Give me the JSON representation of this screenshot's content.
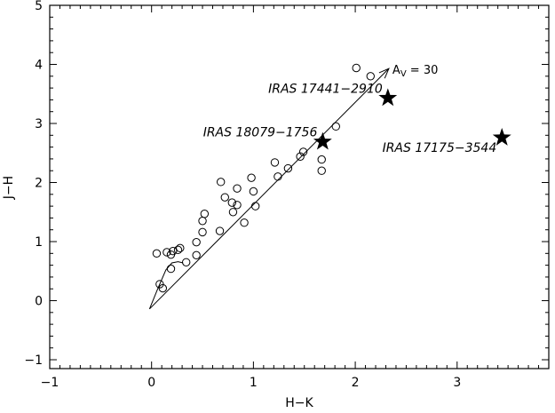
{
  "chart_data": {
    "type": "scatter",
    "xlabel": "H−K",
    "ylabel": "J−H",
    "xlim": [
      -1,
      3.9
    ],
    "ylim": [
      -1.15,
      5
    ],
    "xticks": [
      -1,
      0,
      1,
      2,
      3
    ],
    "yticks": [
      -1,
      0,
      1,
      2,
      3,
      4,
      5
    ],
    "xtick_labels": [
      "−1",
      "0",
      "1",
      "2",
      "3"
    ],
    "ytick_labels": [
      "−1",
      "0",
      "1",
      "2",
      "3",
      "4",
      "5"
    ],
    "grid": false,
    "circles": [
      {
        "x": 0.05,
        "y": 0.8
      },
      {
        "x": 0.15,
        "y": 0.82
      },
      {
        "x": 0.19,
        "y": 0.78
      },
      {
        "x": 0.21,
        "y": 0.84
      },
      {
        "x": 0.26,
        "y": 0.86
      },
      {
        "x": 0.28,
        "y": 0.89
      },
      {
        "x": 0.08,
        "y": 0.28
      },
      {
        "x": 0.11,
        "y": 0.21
      },
      {
        "x": 0.19,
        "y": 0.54
      },
      {
        "x": 0.34,
        "y": 0.65
      },
      {
        "x": 0.44,
        "y": 0.77
      },
      {
        "x": 0.44,
        "y": 0.99
      },
      {
        "x": 0.5,
        "y": 1.16
      },
      {
        "x": 0.5,
        "y": 1.35
      },
      {
        "x": 0.52,
        "y": 1.47
      },
      {
        "x": 0.67,
        "y": 1.18
      },
      {
        "x": 0.68,
        "y": 2.01
      },
      {
        "x": 0.72,
        "y": 1.75
      },
      {
        "x": 0.79,
        "y": 1.66
      },
      {
        "x": 0.8,
        "y": 1.5
      },
      {
        "x": 0.84,
        "y": 1.62
      },
      {
        "x": 0.84,
        "y": 1.9
      },
      {
        "x": 0.91,
        "y": 1.32
      },
      {
        "x": 0.98,
        "y": 2.08
      },
      {
        "x": 1.0,
        "y": 1.85
      },
      {
        "x": 1.02,
        "y": 1.6
      },
      {
        "x": 1.21,
        "y": 2.34
      },
      {
        "x": 1.24,
        "y": 2.1
      },
      {
        "x": 1.34,
        "y": 2.24
      },
      {
        "x": 1.46,
        "y": 2.44
      },
      {
        "x": 1.49,
        "y": 2.52
      },
      {
        "x": 1.67,
        "y": 2.2
      },
      {
        "x": 1.67,
        "y": 2.39
      },
      {
        "x": 1.81,
        "y": 2.95
      },
      {
        "x": 2.01,
        "y": 3.94
      },
      {
        "x": 2.15,
        "y": 3.8
      }
    ],
    "stars": [
      {
        "label": "IRAS 17441−2910",
        "x": 2.32,
        "y": 3.43
      },
      {
        "label": "IRAS 18079−1756",
        "x": 1.68,
        "y": 2.69
      },
      {
        "label": "IRAS 17175−3544",
        "x": 3.44,
        "y": 2.76
      }
    ],
    "locus": [
      {
        "x": -0.02,
        "y": -0.14
      },
      {
        "x": 0.06,
        "y": 0.2
      },
      {
        "x": 0.14,
        "y": 0.52
      },
      {
        "x": 0.2,
        "y": 0.64
      },
      {
        "x": 0.26,
        "y": 0.66
      },
      {
        "x": 0.31,
        "y": 0.64
      }
    ],
    "reddening_vector": {
      "from": {
        "x": -0.02,
        "y": -0.14
      },
      "to": {
        "x": 2.33,
        "y": 3.93
      },
      "label": "A",
      "label_sub": "V",
      "label_value": " = 30"
    }
  }
}
